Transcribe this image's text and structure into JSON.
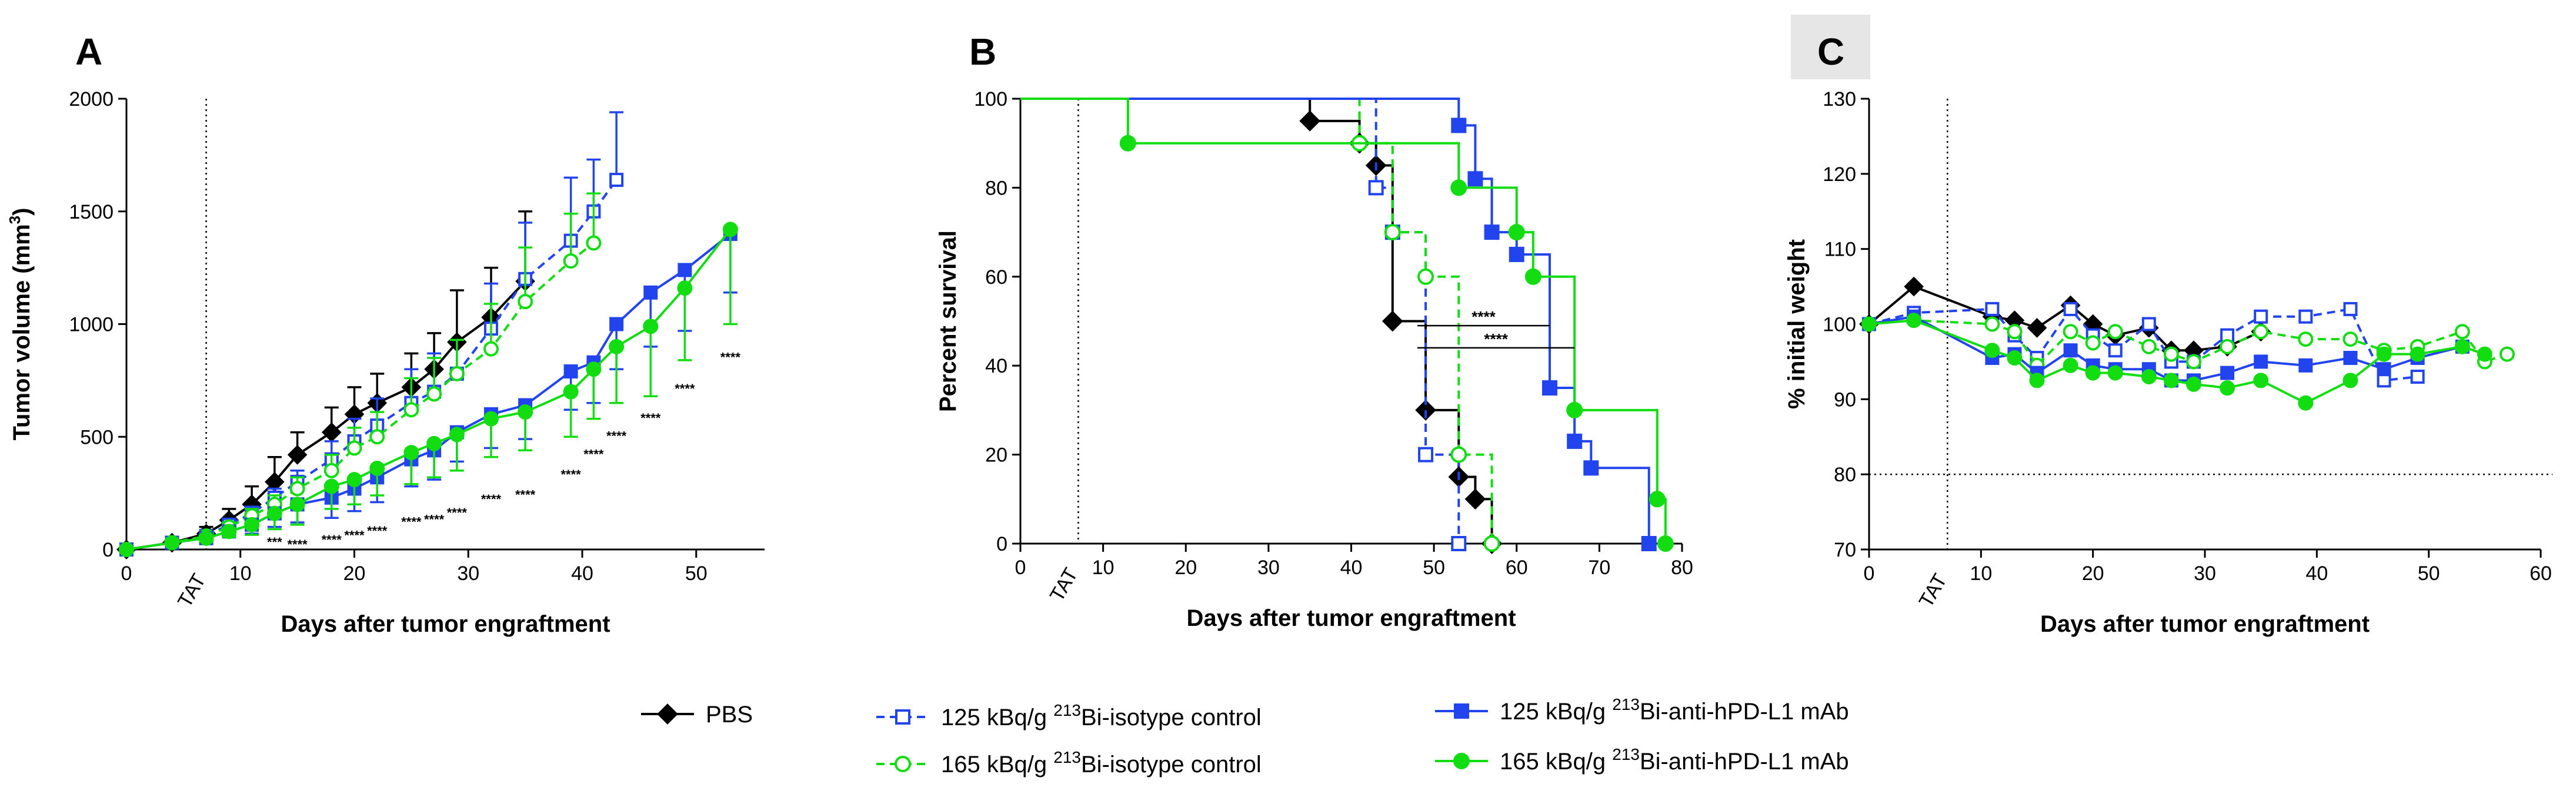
{
  "colors": {
    "pbs": "#000000",
    "iso125": "#2244ee",
    "iso165": "#11dd11",
    "anti125": "#2244ee",
    "anti165": "#11dd11",
    "panel_c_label_bg": "#e6e6e6"
  },
  "legend": [
    {
      "key": "pbs",
      "label_parts": [
        "PBS"
      ],
      "marker": "diamond",
      "filled": true,
      "dashed": false
    },
    {
      "key": "iso125",
      "label_parts": [
        "125 kBq/g ",
        "213",
        "Bi-isotype control"
      ],
      "marker": "square",
      "filled": false,
      "dashed": true
    },
    {
      "key": "iso165",
      "label_parts": [
        "165 kBq/g  ",
        "213",
        "Bi-isotype control"
      ],
      "marker": "circle",
      "filled": false,
      "dashed": true
    },
    {
      "key": "anti125",
      "label_parts": [
        "125 kBq/g ",
        "213",
        "Bi-anti-hPD-L1 mAb"
      ],
      "marker": "square",
      "filled": true,
      "dashed": false
    },
    {
      "key": "anti165",
      "label_parts": [
        "165 kBq/g  ",
        "213",
        "Bi-anti-hPD-L1 mAb"
      ],
      "marker": "circle",
      "filled": true,
      "dashed": false
    }
  ],
  "chart_data": [
    {
      "panel": "A",
      "type": "line",
      "xlabel": "Days after tumor engraftment",
      "ylabel_parts": [
        "Tumor volume (mm",
        "3",
        ")"
      ],
      "xlim": [
        0,
        56
      ],
      "ylim": [
        0,
        2000
      ],
      "xticks": [
        0,
        10,
        20,
        30,
        40,
        50
      ],
      "yticks": [
        0,
        500,
        1000,
        1500,
        2000
      ],
      "treatment_day": 7,
      "treatment_label": "TAT",
      "series": [
        {
          "key": "pbs",
          "x": [
            0,
            4,
            7,
            9,
            11,
            13,
            15,
            18,
            20,
            22,
            25,
            27,
            29,
            32,
            35
          ],
          "y": [
            0,
            30,
            70,
            130,
            200,
            300,
            420,
            520,
            600,
            650,
            720,
            800,
            920,
            1030,
            1190
          ],
          "err_up": [
            0,
            20,
            30,
            50,
            80,
            110,
            100,
            110,
            120,
            130,
            150,
            160,
            230,
            220,
            310
          ]
        },
        {
          "key": "iso125",
          "x": [
            0,
            4,
            7,
            9,
            11,
            13,
            15,
            18,
            20,
            22,
            25,
            27,
            29,
            32,
            35,
            39,
            41,
            43
          ],
          "y": [
            0,
            30,
            60,
            110,
            160,
            230,
            300,
            400,
            480,
            550,
            650,
            700,
            780,
            980,
            1200,
            1370,
            1500,
            1640
          ],
          "err_up": [
            0,
            10,
            15,
            20,
            30,
            40,
            50,
            80,
            100,
            120,
            150,
            170,
            150,
            200,
            250,
            280,
            230,
            300
          ]
        },
        {
          "key": "iso165",
          "x": [
            0,
            4,
            7,
            9,
            11,
            13,
            15,
            18,
            20,
            22,
            25,
            27,
            29,
            32,
            35,
            39,
            41
          ],
          "y": [
            0,
            30,
            60,
            100,
            150,
            200,
            270,
            350,
            450,
            500,
            620,
            690,
            780,
            890,
            1100,
            1280,
            1360
          ],
          "err_up": [
            0,
            10,
            15,
            20,
            30,
            40,
            50,
            70,
            90,
            110,
            140,
            160,
            150,
            200,
            240,
            210,
            220
          ]
        },
        {
          "key": "anti125",
          "x": [
            0,
            4,
            7,
            9,
            11,
            13,
            15,
            18,
            20,
            22,
            25,
            27,
            29,
            32,
            35,
            39,
            41,
            43,
            46,
            49,
            53
          ],
          "y": [
            0,
            30,
            50,
            80,
            110,
            160,
            200,
            230,
            270,
            320,
            400,
            440,
            520,
            600,
            640,
            790,
            830,
            1000,
            1140,
            1240,
            1400
          ],
          "err_dn": [
            0,
            10,
            15,
            20,
            40,
            60,
            80,
            90,
            100,
            110,
            120,
            130,
            130,
            150,
            150,
            170,
            180,
            200,
            240,
            270,
            260
          ],
          "err_up": [
            0,
            0,
            0,
            0,
            0,
            0,
            0,
            0,
            0,
            0,
            0,
            0,
            0,
            0,
            0,
            0,
            0,
            0,
            0,
            0,
            0
          ]
        },
        {
          "key": "anti165",
          "x": [
            0,
            4,
            7,
            9,
            11,
            13,
            15,
            18,
            20,
            22,
            25,
            27,
            29,
            32,
            35,
            39,
            41,
            43,
            46,
            49,
            53
          ],
          "y": [
            0,
            30,
            50,
            80,
            110,
            160,
            200,
            280,
            310,
            360,
            430,
            470,
            510,
            580,
            610,
            700,
            800,
            900,
            990,
            1160,
            1420
          ],
          "err_dn": [
            0,
            10,
            15,
            25,
            45,
            70,
            90,
            100,
            110,
            120,
            140,
            150,
            160,
            170,
            170,
            200,
            220,
            250,
            310,
            320,
            420
          ],
          "err_up": [
            0,
            0,
            0,
            0,
            0,
            0,
            0,
            0,
            0,
            0,
            0,
            0,
            0,
            0,
            0,
            0,
            0,
            0,
            0,
            0,
            0
          ]
        }
      ],
      "significance": [
        {
          "x": 13,
          "y": 60,
          "text": "***"
        },
        {
          "x": 15,
          "y": 50,
          "text": "****"
        },
        {
          "x": 18,
          "y": 70,
          "text": "****"
        },
        {
          "x": 20,
          "y": 90,
          "text": "****"
        },
        {
          "x": 22,
          "y": 110,
          "text": "****"
        },
        {
          "x": 25,
          "y": 150,
          "text": "****"
        },
        {
          "x": 27,
          "y": 160,
          "text": "****"
        },
        {
          "x": 29,
          "y": 190,
          "text": "****"
        },
        {
          "x": 32,
          "y": 250,
          "text": "****"
        },
        {
          "x": 35,
          "y": 270,
          "text": "****"
        },
        {
          "x": 39,
          "y": 360,
          "text": "****"
        },
        {
          "x": 41,
          "y": 450,
          "text": "****"
        },
        {
          "x": 43,
          "y": 530,
          "text": "****"
        },
        {
          "x": 46,
          "y": 610,
          "text": "****"
        },
        {
          "x": 49,
          "y": 740,
          "text": "****"
        },
        {
          "x": 53,
          "y": 880,
          "text": "****"
        }
      ]
    },
    {
      "panel": "B",
      "type": "line",
      "subtype": "survival-step",
      "xlabel": "Days after tumor engraftment",
      "ylabel": "Percent survival",
      "xlim": [
        0,
        80
      ],
      "ylim": [
        0,
        100
      ],
      "xticks": [
        0,
        10,
        20,
        30,
        40,
        50,
        60,
        70,
        80
      ],
      "yticks": [
        0,
        20,
        40,
        60,
        80,
        100
      ],
      "treatment_day": 7,
      "treatment_label": "TAT",
      "series": [
        {
          "key": "pbs",
          "steps": [
            [
              0,
              100
            ],
            [
              35,
              95
            ],
            [
              41,
              90
            ],
            [
              43,
              85
            ],
            [
              45,
              50
            ],
            [
              49,
              30
            ],
            [
              53,
              15
            ],
            [
              55,
              10
            ],
            [
              57,
              0
            ]
          ],
          "markers": [
            [
              35,
              95
            ],
            [
              41,
              90
            ],
            [
              43,
              85
            ],
            [
              45,
              50
            ],
            [
              49,
              30
            ],
            [
              53,
              15
            ],
            [
              55,
              10
            ],
            [
              57,
              0
            ]
          ]
        },
        {
          "key": "iso125",
          "steps": [
            [
              0,
              100
            ],
            [
              43,
              80
            ],
            [
              45,
              70
            ],
            [
              49,
              20
            ],
            [
              53,
              0
            ]
          ],
          "markers": [
            [
              43,
              80
            ],
            [
              45,
              70
            ],
            [
              49,
              20
            ],
            [
              53,
              0
            ]
          ]
        },
        {
          "key": "iso165",
          "steps": [
            [
              0,
              100
            ],
            [
              41,
              90
            ],
            [
              45,
              70
            ],
            [
              49,
              60
            ],
            [
              53,
              20
            ],
            [
              57,
              0
            ]
          ],
          "markers": [
            [
              41,
              90
            ],
            [
              45,
              70
            ],
            [
              49,
              60
            ],
            [
              53,
              20
            ],
            [
              57,
              0
            ]
          ]
        },
        {
          "key": "anti125",
          "steps": [
            [
              0,
              100
            ],
            [
              53,
              94
            ],
            [
              55,
              82
            ],
            [
              57,
              70
            ],
            [
              60,
              65
            ],
            [
              64,
              35
            ],
            [
              67,
              23
            ],
            [
              69,
              17
            ],
            [
              76,
              0
            ]
          ],
          "markers": [
            [
              53,
              94
            ],
            [
              55,
              82
            ],
            [
              57,
              70
            ],
            [
              60,
              65
            ],
            [
              64,
              35
            ],
            [
              67,
              23
            ],
            [
              69,
              17
            ],
            [
              76,
              0
            ]
          ]
        },
        {
          "key": "anti165",
          "steps": [
            [
              0,
              100
            ],
            [
              13,
              90
            ],
            [
              53,
              80
            ],
            [
              60,
              70
            ],
            [
              62,
              60
            ],
            [
              67,
              30
            ],
            [
              77,
              10
            ],
            [
              78,
              0
            ]
          ],
          "markers": [
            [
              13,
              90
            ],
            [
              53,
              80
            ],
            [
              60,
              70
            ],
            [
              62,
              60
            ],
            [
              67,
              30
            ],
            [
              77,
              10
            ],
            [
              78,
              0
            ]
          ]
        }
      ],
      "significance": [
        {
          "x1": 48,
          "x2": 64,
          "y": 49,
          "text": "****"
        },
        {
          "x1": 48,
          "x2": 67,
          "y": 44,
          "text": "****"
        }
      ]
    },
    {
      "panel": "C",
      "type": "line",
      "xlabel": "Days after tumor engraftment",
      "ylabel": "% initial weight",
      "xlim": [
        0,
        60
      ],
      "ylim": [
        70,
        130
      ],
      "xticks": [
        0,
        10,
        20,
        30,
        40,
        50,
        60
      ],
      "yticks": [
        70,
        80,
        90,
        100,
        110,
        120,
        130
      ],
      "treatment_day": 7,
      "treatment_label": "TAT",
      "reference_line": 80,
      "series": [
        {
          "key": "pbs",
          "x": [
            0,
            4,
            11,
            13,
            15,
            18,
            20,
            22,
            25,
            27,
            29,
            32,
            35
          ],
          "y": [
            100,
            105,
            101,
            100.5,
            99.5,
            102.5,
            100,
            98.5,
            99.5,
            96.5,
            96.5,
            97,
            99
          ]
        },
        {
          "key": "iso125",
          "x": [
            0,
            4,
            11,
            13,
            15,
            18,
            20,
            22,
            25,
            27,
            29,
            32,
            35,
            39,
            43,
            46,
            49
          ],
          "y": [
            100,
            101.5,
            102,
            98.5,
            95.5,
            102,
            98.5,
            96.5,
            100,
            95,
            95,
            98.5,
            101,
            101,
            102,
            92.5,
            93
          ]
        },
        {
          "key": "iso165",
          "x": [
            0,
            4,
            11,
            13,
            15,
            18,
            20,
            22,
            25,
            27,
            29,
            32,
            35,
            39,
            43,
            46,
            49,
            53,
            55,
            57
          ],
          "y": [
            100,
            100.5,
            100,
            99,
            94.5,
            99,
            97.5,
            99,
            97,
            96,
            95,
            97,
            99,
            98,
            98,
            96.5,
            97,
            99,
            95,
            96
          ]
        },
        {
          "key": "anti125",
          "x": [
            0,
            4,
            11,
            13,
            15,
            18,
            20,
            22,
            25,
            27,
            29,
            32,
            35,
            39,
            43,
            46,
            49,
            53
          ],
          "y": [
            100,
            101,
            95.5,
            96,
            93.5,
            96.5,
            94.5,
            94,
            94,
            92.5,
            92.5,
            93.5,
            95,
            94.5,
            95.5,
            94,
            95.5,
            97
          ]
        },
        {
          "key": "anti165",
          "x": [
            0,
            4,
            11,
            13,
            15,
            18,
            20,
            22,
            25,
            27,
            29,
            32,
            35,
            39,
            43,
            46,
            49,
            53,
            55
          ],
          "y": [
            100,
            100.5,
            96.5,
            95.5,
            92.5,
            94.5,
            93.5,
            93.5,
            93,
            92.5,
            92,
            91.5,
            92.5,
            89.5,
            92.5,
            96,
            96,
            97,
            96
          ]
        }
      ]
    }
  ]
}
